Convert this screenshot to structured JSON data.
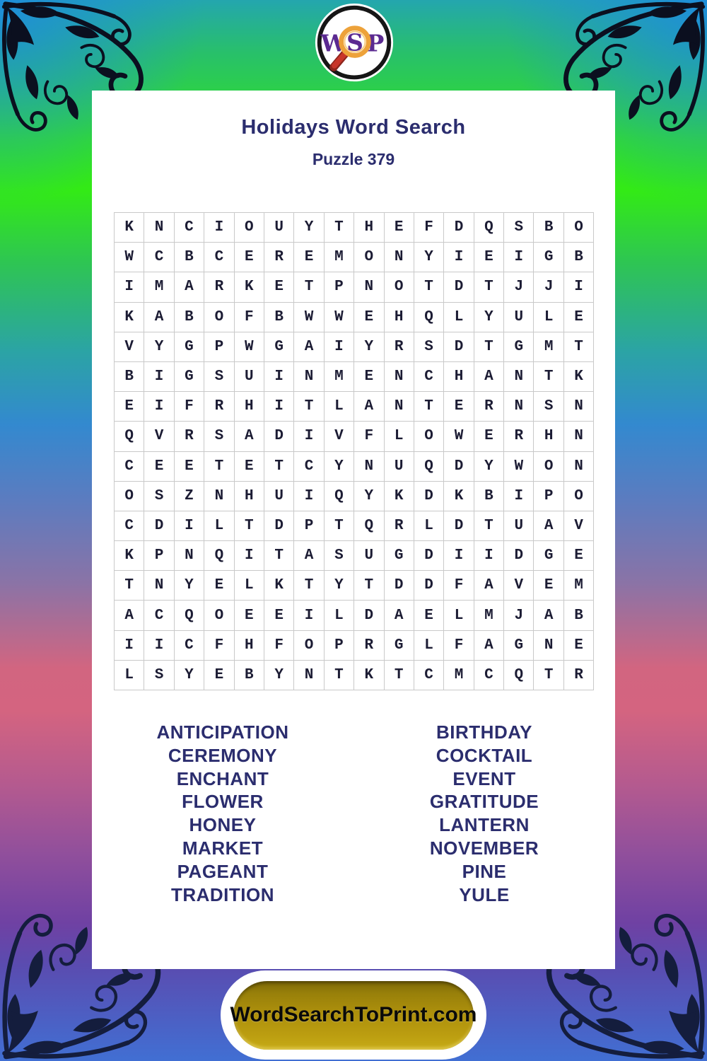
{
  "header": {
    "title": "Holidays Word Search",
    "subtitle": "Puzzle 379"
  },
  "logo": {
    "letters": [
      "W",
      "S",
      "P"
    ]
  },
  "grid": {
    "rows": [
      "KNCIOUYTHEFDQSBO",
      "WCBCEREMONYIEIGB",
      "IMARKETPNOTDTJJI",
      "KABOFBWWEHQLYULE",
      "VYGPWGAIYRSDTGMT",
      "BIGSUINMENCHANTK",
      "EIFRHITLANTERNSN",
      "QVRSADIVFLOWERHN",
      "CEETETCYNUQDYWON",
      "OSZNHUIQYKDKBIPO",
      "CDILTDPTQRLDTUAV",
      "KPNQITASUGDIIDGE",
      "TNYELKTYTDDFAVEM",
      "ACQOEEILDAELMJAB",
      "IICFHFOPRGLFAGNE",
      "LSYEBYNTKTCMCQTR"
    ]
  },
  "words": {
    "left": [
      "ANTICIPATION",
      "CEREMONY",
      "ENCHANT",
      "FLOWER",
      "HONEY",
      "MARKET",
      "PAGEANT",
      "TRADITION"
    ],
    "right": [
      "BIRTHDAY",
      "COCKTAIL",
      "EVENT",
      "GRATITUDE",
      "LANTERN",
      "NOVEMBER",
      "PINE",
      "YULE"
    ]
  },
  "footer": {
    "button_label": "WordSearchToPrint.com"
  },
  "colors": {
    "navy": "#2b2d6e",
    "grid_letter": "#1c1c34",
    "grid_line": "#c9c9c9",
    "logo_purple": "#5b2a91",
    "lens_orange": "#eda23a",
    "handle_red": "#bb3226",
    "ink_top": "#0b0f1f",
    "ink_bottom": "#141d3d",
    "gold": "#ac8f0c"
  }
}
